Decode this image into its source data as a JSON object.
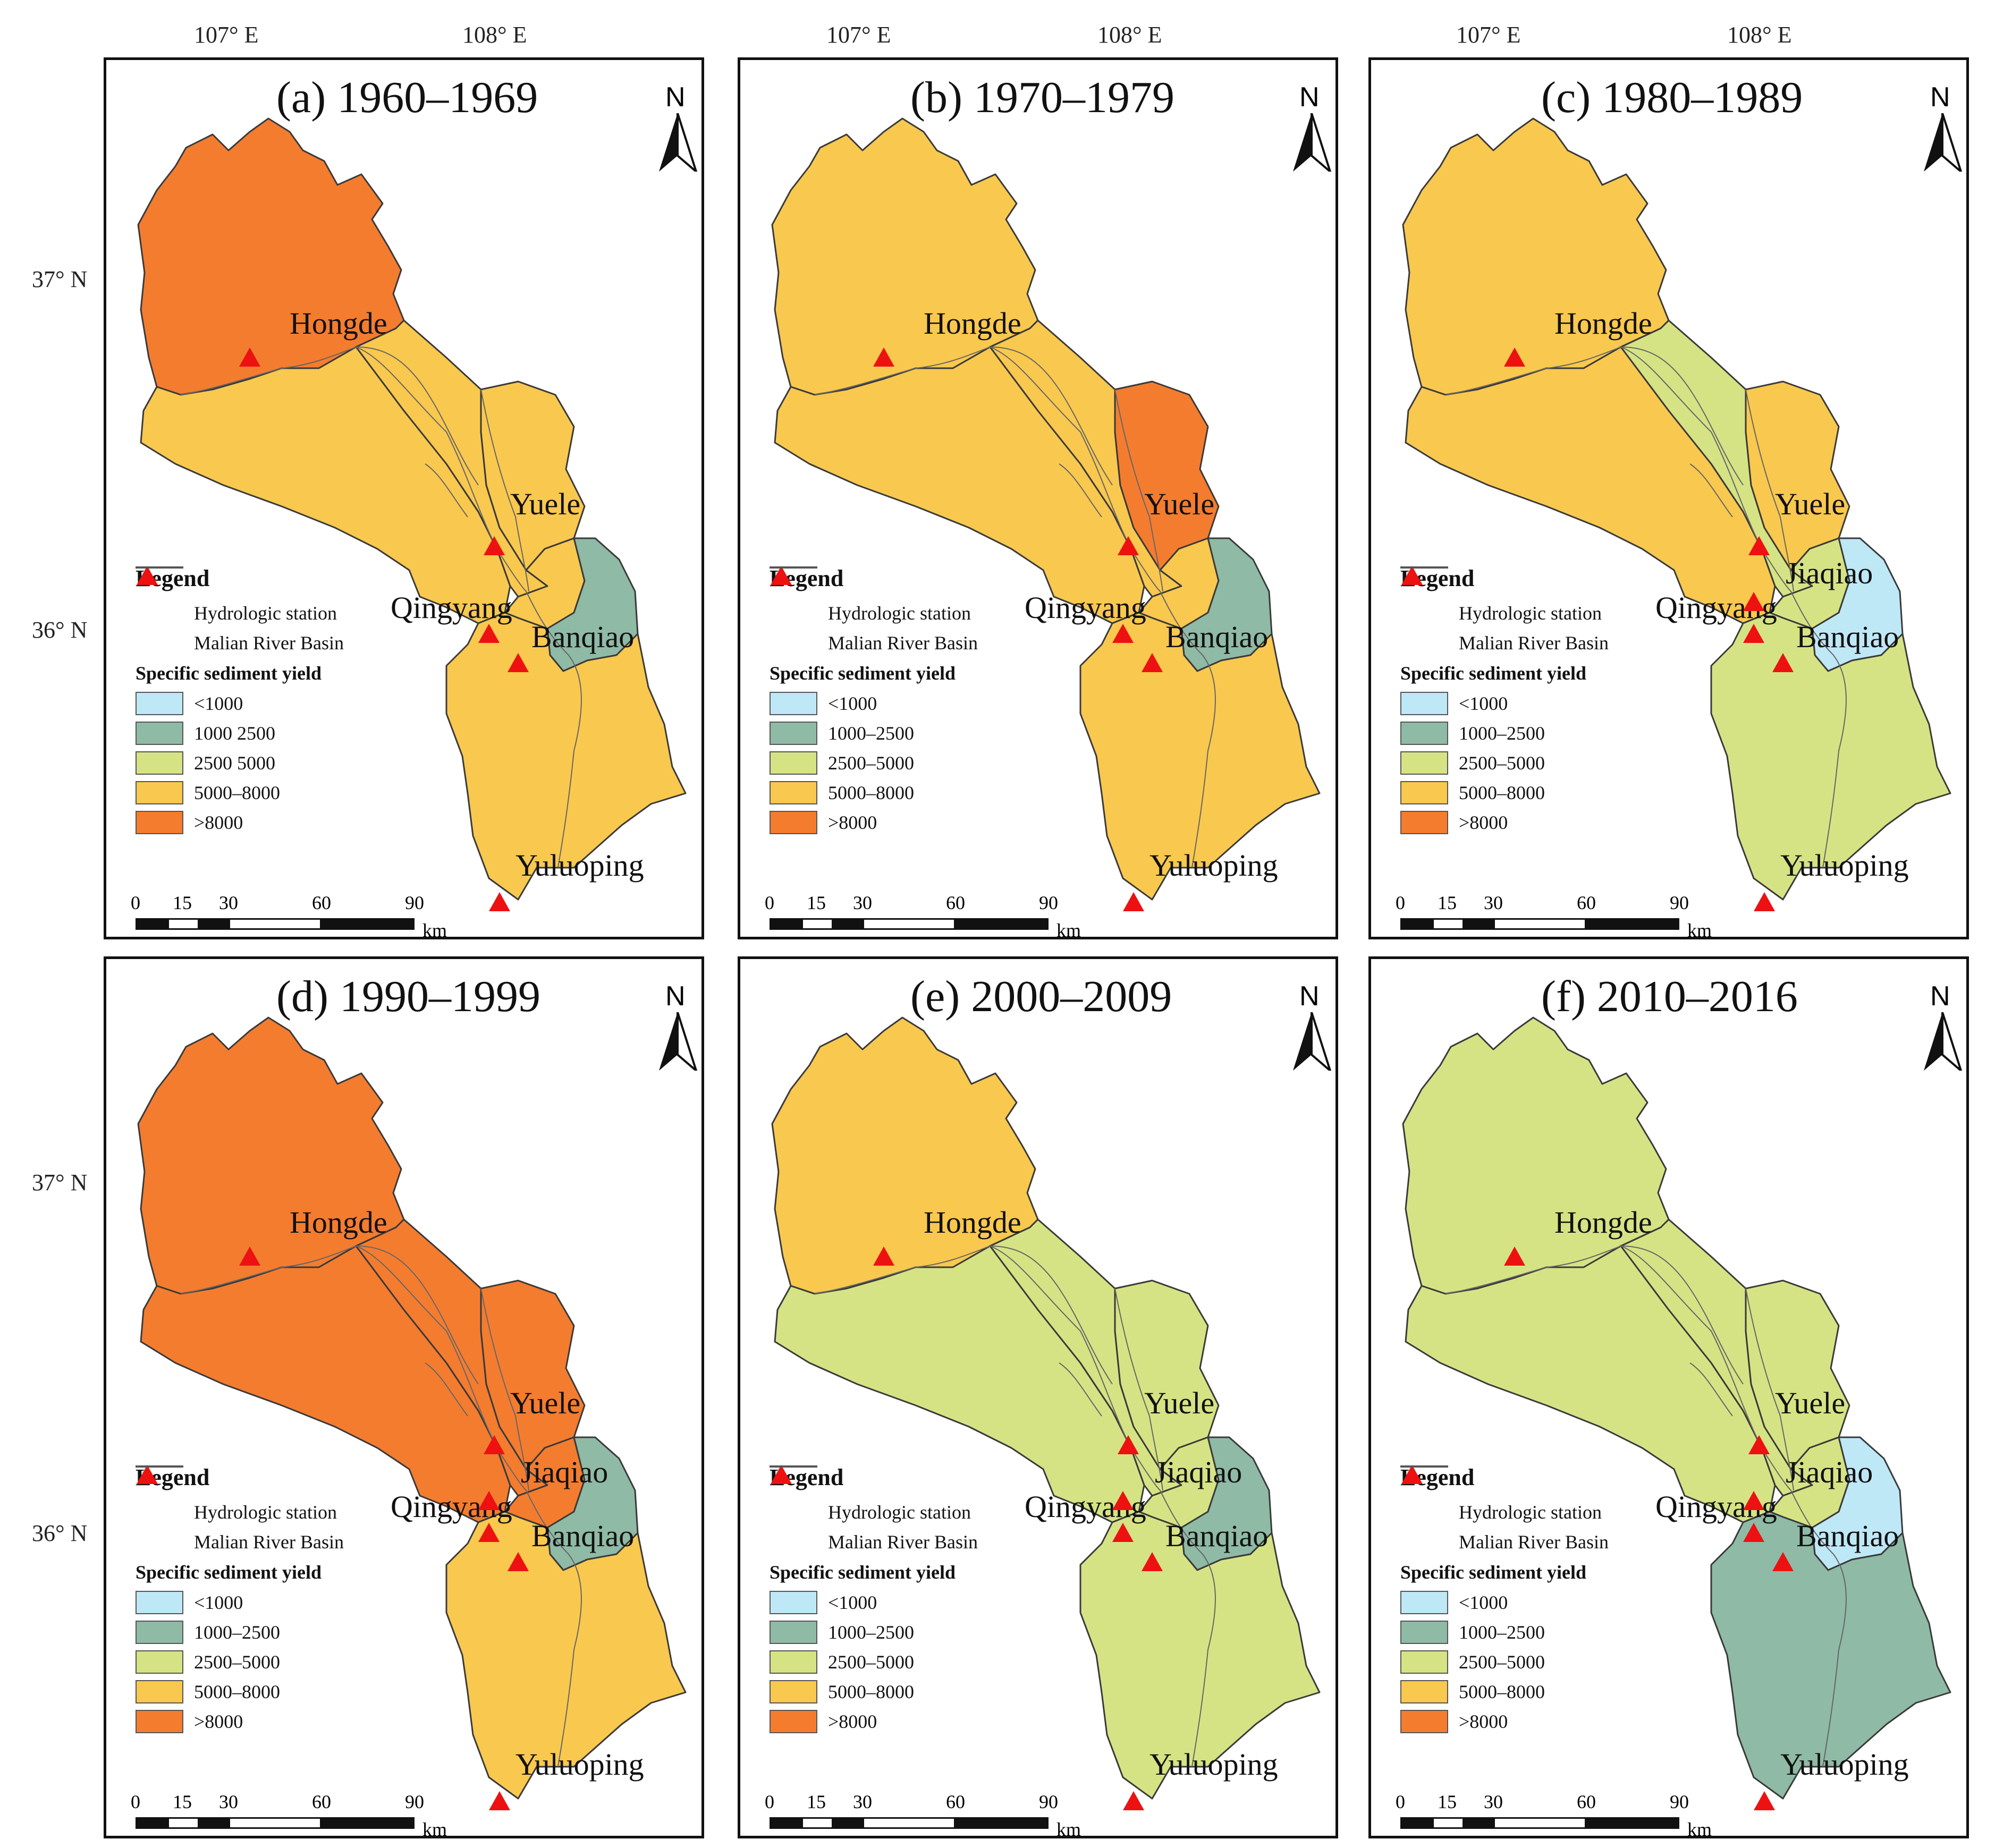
{
  "lon_labels": [
    "107° E",
    "108° E"
  ],
  "lat_labels": [
    "37° N",
    "36° N"
  ],
  "colors": {
    "lt1000": "#bfe8f7",
    "c1000_2500": "#8fbaa6",
    "c2500_5000": "#d6e384",
    "c5000_8000": "#f9c84e",
    "gt8000": "#f47c2f",
    "station": "#ee1111",
    "river": "#666666"
  },
  "legend": {
    "title": "Legend",
    "station": "Hydrologic station",
    "basin": "Malian River Basin",
    "ssy_title": "Specific sediment yield",
    "classes": [
      "<1000",
      "1000–2500",
      "2500–5000",
      "5000–8000",
      ">8000"
    ]
  },
  "scale": {
    "ticks": [
      "0",
      "15",
      "30",
      "60",
      "90"
    ],
    "unit": "km"
  },
  "north": "N",
  "stations": [
    "Hongde",
    "Yuele",
    "Qingyang",
    "Banqiao",
    "Yuluoping",
    "Jiaqiao"
  ],
  "panels": [
    {
      "title": "(a) 1960–1969",
      "show_jiaqiao": false,
      "legend_classes": [
        "<1000",
        "1000 2500",
        "2500 5000",
        "5000–8000",
        ">8000"
      ],
      "zones": {
        "hongde_upper": "gt8000",
        "west": "c5000_8000",
        "middle": "c5000_8000",
        "yuele": "c5000_8000",
        "jiaqiao": "c5000_8000",
        "banqiao": "c1000_2500",
        "south": "c5000_8000"
      }
    },
    {
      "title": "(b) 1970–1979",
      "show_jiaqiao": false,
      "legend_classes": [
        "<1000",
        "1000–2500",
        "2500–5000",
        "5000–8000",
        ">8000"
      ],
      "zones": {
        "hongde_upper": "c5000_8000",
        "west": "c5000_8000",
        "middle": "c5000_8000",
        "yuele": "gt8000",
        "jiaqiao": "c5000_8000",
        "banqiao": "c1000_2500",
        "south": "c5000_8000"
      }
    },
    {
      "title": "(c) 1980–1989",
      "show_jiaqiao": true,
      "legend_classes": [
        "<1000",
        "1000–2500",
        "2500–5000",
        "5000–8000",
        ">8000"
      ],
      "zones": {
        "hongde_upper": "c5000_8000",
        "west": "c5000_8000",
        "middle": "c2500_5000",
        "yuele": "c5000_8000",
        "jiaqiao": "c2500_5000",
        "banqiao": "lt1000",
        "south": "c2500_5000"
      }
    },
    {
      "title": "(d) 1990–1999",
      "show_jiaqiao": true,
      "legend_classes": [
        "<1000",
        "1000–2500",
        "2500–5000",
        "5000–8000",
        ">8000"
      ],
      "zones": {
        "hongde_upper": "gt8000",
        "west": "gt8000",
        "middle": "gt8000",
        "yuele": "gt8000",
        "jiaqiao": "gt8000",
        "banqiao": "c1000_2500",
        "south": "c5000_8000"
      }
    },
    {
      "title": "(e) 2000–2009",
      "show_jiaqiao": true,
      "legend_classes": [
        "<1000",
        "1000–2500",
        "2500–5000",
        "5000–8000",
        ">8000"
      ],
      "zones": {
        "hongde_upper": "c5000_8000",
        "west": "c2500_5000",
        "middle": "c2500_5000",
        "yuele": "c2500_5000",
        "jiaqiao": "c2500_5000",
        "banqiao": "c1000_2500",
        "south": "c2500_5000"
      }
    },
    {
      "title": "(f) 2010–2016",
      "show_jiaqiao": true,
      "legend_classes": [
        "<1000",
        "1000–2500",
        "2500–5000",
        "5000–8000",
        ">8000"
      ],
      "zones": {
        "hongde_upper": "c2500_5000",
        "west": "c2500_5000",
        "middle": "c2500_5000",
        "yuele": "c2500_5000",
        "jiaqiao": "c2500_5000",
        "banqiao": "lt1000",
        "south": "c1000_2500"
      }
    }
  ]
}
